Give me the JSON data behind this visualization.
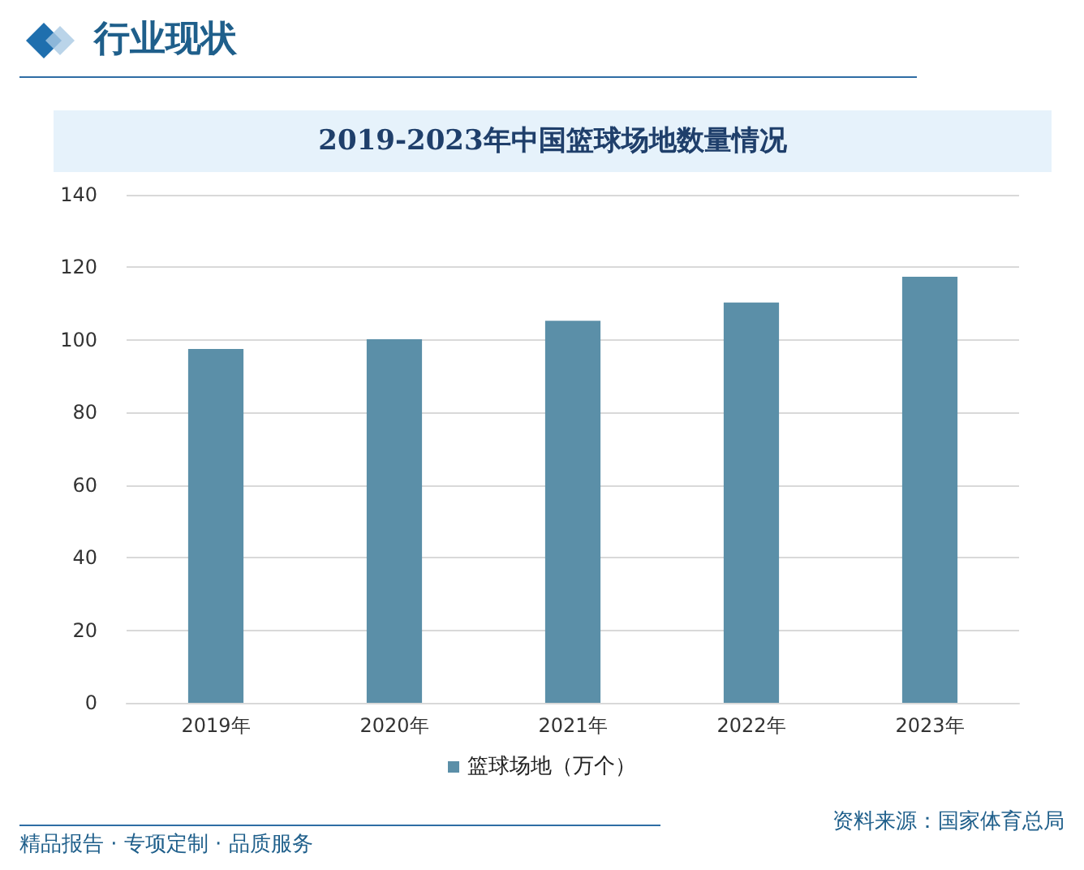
{
  "chart_data": {
    "type": "bar",
    "title": "2019-2023年中国篮球场地数量情况",
    "annotations": [
      "行业现状",
      "资料来源：国家体育总局",
      "精品报告 · 专项定制 · 品质服务"
    ],
    "categories": [
      "2019年",
      "2020年",
      "2021年",
      "2022年",
      "2023年"
    ],
    "series": [
      {
        "name": "篮球场地（万个）",
        "color": "#5b8fa8",
        "values": [
          97.5,
          100.2,
          105.3,
          110.3,
          117.4
        ]
      }
    ],
    "ylim": [
      0,
      140
    ],
    "yticks": [
      0,
      20,
      40,
      60,
      80,
      100,
      120,
      140
    ],
    "grid": "y",
    "legend": "bottom"
  }
}
